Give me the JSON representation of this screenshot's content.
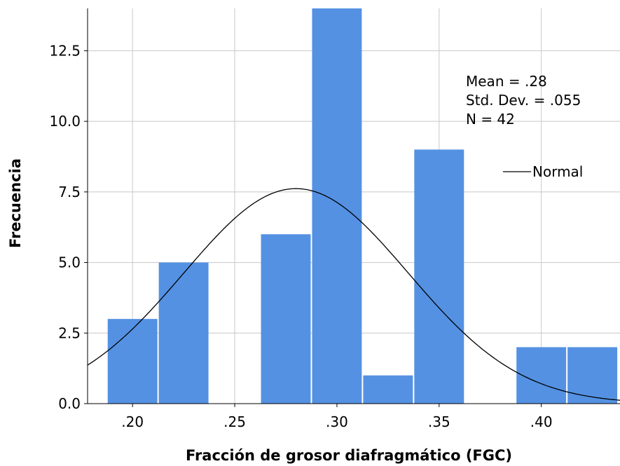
{
  "chart_data": {
    "type": "bar",
    "title": "",
    "xlabel": "Fracción de grosor diafragmático (FGC)",
    "ylabel": "Frecuencia",
    "xlim": [
      0.178,
      0.4385
    ],
    "ylim": [
      0,
      14.0
    ],
    "grid": true,
    "x_ticks": [
      0.2,
      0.25,
      0.3,
      0.35,
      0.4
    ],
    "x_tick_labels": [
      ".20",
      ".25",
      ".30",
      ".35",
      ".40"
    ],
    "y_ticks": [
      0,
      2.5,
      5,
      7.5,
      10,
      12.5
    ],
    "y_tick_labels": [
      "0.0",
      "2.5",
      "5.0",
      "7.5",
      "10.0",
      "12.5"
    ],
    "bin_width": 0.025,
    "bins": [
      {
        "start": 0.1875,
        "end": 0.2125,
        "count": 3
      },
      {
        "start": 0.2125,
        "end": 0.2375,
        "count": 5
      },
      {
        "start": 0.2375,
        "end": 0.2625,
        "count": 0
      },
      {
        "start": 0.2625,
        "end": 0.2875,
        "count": 6
      },
      {
        "start": 0.2875,
        "end": 0.3125,
        "count": 14
      },
      {
        "start": 0.3125,
        "end": 0.3375,
        "count": 1
      },
      {
        "start": 0.3375,
        "end": 0.3625,
        "count": 9
      },
      {
        "start": 0.3625,
        "end": 0.3875,
        "count": 0
      },
      {
        "start": 0.3875,
        "end": 0.4125,
        "count": 2
      },
      {
        "start": 0.4125,
        "end": 0.4375,
        "count": 2
      }
    ],
    "bar_color": "#5491e3",
    "normal_curve": {
      "mean": 0.28,
      "std": 0.055,
      "n": 42
    },
    "stats_lines": [
      "Mean = .28",
      "Std. Dev. = .055",
      "N = 42"
    ],
    "legend": {
      "entries": [
        {
          "label": "Normal"
        }
      ],
      "position": "top-right"
    }
  }
}
